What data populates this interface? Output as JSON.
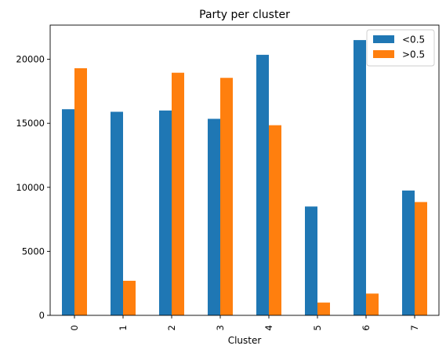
{
  "chart_data": {
    "type": "bar",
    "title": "Party per cluster",
    "xlabel": "Cluster",
    "ylabel": "",
    "categories": [
      "0",
      "1",
      "2",
      "3",
      "4",
      "5",
      "6",
      "7"
    ],
    "series": [
      {
        "name": "<0.5",
        "color": "#1f77b4",
        "values": [
          16100,
          15900,
          16000,
          15350,
          20350,
          8500,
          21500,
          9750
        ]
      },
      {
        "name": ">0.5",
        "color": "#ff7f0e",
        "values": [
          19300,
          2700,
          18950,
          18550,
          14850,
          1000,
          1700,
          8850
        ]
      }
    ],
    "ylim": [
      0,
      22670
    ],
    "yticks": [
      0,
      5000,
      10000,
      15000,
      20000
    ],
    "legend_position": "top-right",
    "grid": false
  }
}
